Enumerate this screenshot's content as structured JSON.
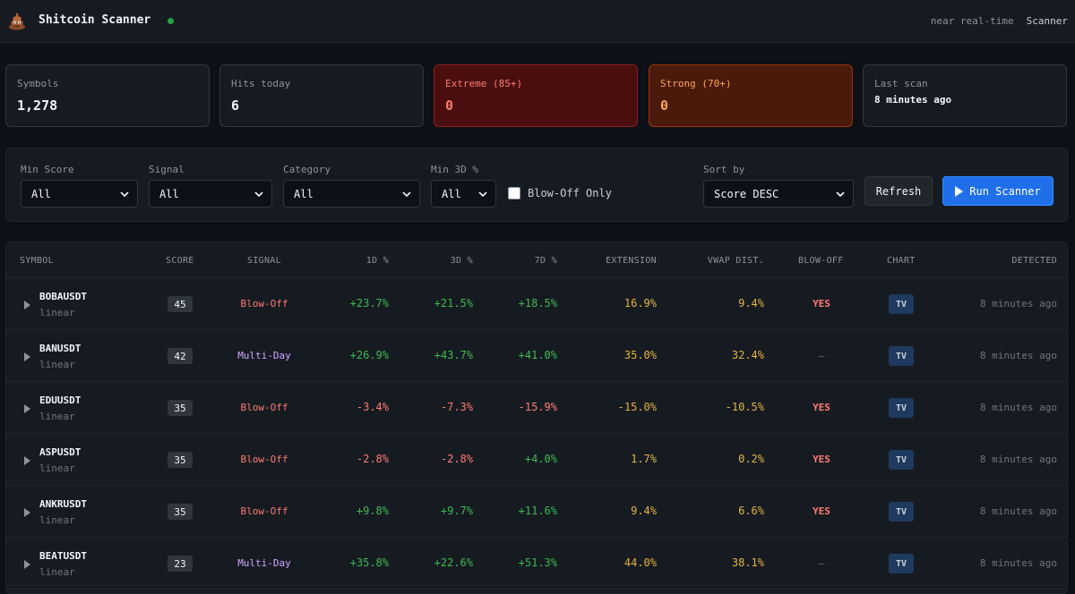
{
  "header": {
    "title": "Shitcoin Scanner",
    "note": "near real-time",
    "nav": "Scanner"
  },
  "stats": [
    {
      "label": "Symbols",
      "value": "1,278"
    },
    {
      "label": "Hits today",
      "value": "6"
    },
    {
      "label": "Extreme (85+)",
      "value": "0"
    },
    {
      "label": "Strong (70+)",
      "value": "0"
    },
    {
      "label": "Last scan",
      "value": "8 minutes ago"
    }
  ],
  "filters": {
    "min_score": {
      "label": "Min Score",
      "value": "All"
    },
    "signal": {
      "label": "Signal",
      "value": "All"
    },
    "category": {
      "label": "Category",
      "value": "All"
    },
    "min_3d": {
      "label": "Min 3D %",
      "value": "All"
    },
    "blowoff_only": {
      "label": "Blow-Off Only",
      "checked": false
    },
    "sort_by": {
      "label": "Sort by",
      "value": "Score DESC"
    },
    "refresh_label": "Refresh",
    "run_label": "Run Scanner"
  },
  "table": {
    "headers": {
      "symbol": "SYMBOL",
      "score": "SCORE",
      "signal": "SIGNAL",
      "d1": "1D %",
      "d3": "3D %",
      "d7": "7D %",
      "extension": "EXTENSION",
      "vwap": "VWAP DIST.",
      "blowoff": "BLOW-OFF",
      "chart": "CHART",
      "detected": "DETECTED"
    },
    "rows": [
      {
        "symbol": "BOBAUSDT",
        "category": "linear",
        "score": "45",
        "signal": "Blow-Off",
        "d1": "+23.7%",
        "d3": "+21.5%",
        "d7": "+18.5%",
        "extension": "16.9%",
        "vwap": "9.4%",
        "blowoff": "YES",
        "chart": "TV",
        "detected": "8 minutes ago"
      },
      {
        "symbol": "BANUSDT",
        "category": "linear",
        "score": "42",
        "signal": "Multi-Day",
        "d1": "+26.9%",
        "d3": "+43.7%",
        "d7": "+41.0%",
        "extension": "35.0%",
        "vwap": "32.4%",
        "blowoff": "–",
        "chart": "TV",
        "detected": "8 minutes ago"
      },
      {
        "symbol": "EDUUSDT",
        "category": "linear",
        "score": "35",
        "signal": "Blow-Off",
        "d1": "-3.4%",
        "d3": "-7.3%",
        "d7": "-15.9%",
        "extension": "-15.0%",
        "vwap": "-10.5%",
        "blowoff": "YES",
        "chart": "TV",
        "detected": "8 minutes ago"
      },
      {
        "symbol": "ASPUSDT",
        "category": "linear",
        "score": "35",
        "signal": "Blow-Off",
        "d1": "-2.8%",
        "d3": "-2.8%",
        "d7": "+4.0%",
        "extension": "1.7%",
        "vwap": "0.2%",
        "blowoff": "YES",
        "chart": "TV",
        "detected": "8 minutes ago"
      },
      {
        "symbol": "ANKRUSDT",
        "category": "linear",
        "score": "35",
        "signal": "Blow-Off",
        "d1": "+9.8%",
        "d3": "+9.7%",
        "d7": "+11.6%",
        "extension": "9.4%",
        "vwap": "6.6%",
        "blowoff": "YES",
        "chart": "TV",
        "detected": "8 minutes ago"
      },
      {
        "symbol": "BEATUSDT",
        "category": "linear",
        "score": "23",
        "signal": "Multi-Day",
        "d1": "+35.8%",
        "d3": "+22.6%",
        "d7": "+51.3%",
        "extension": "44.0%",
        "vwap": "38.1%",
        "blowoff": "–",
        "chart": "TV",
        "detected": "8 minutes ago"
      }
    ]
  },
  "colors": {
    "background": "#0d1117",
    "positive": "#3fb950",
    "negative": "#ff7b72",
    "warning": "#e3b341",
    "accent": "#1f6feb",
    "multiday": "#d2a8ff"
  }
}
